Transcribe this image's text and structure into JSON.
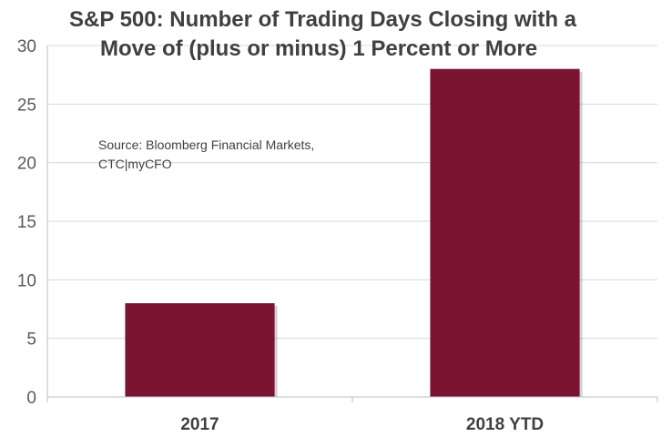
{
  "chart_data": {
    "type": "bar",
    "title_lines": [
      "S&P 500:  Number of Trading Days Closing with a",
      "Move of (plus or minus) 1 Percent or More"
    ],
    "xlabel": "",
    "ylabel": "",
    "categories": [
      "2017",
      "2018 YTD"
    ],
    "values": [
      8,
      28
    ],
    "ylim": [
      0,
      30
    ],
    "yticks": [
      0,
      5,
      10,
      15,
      20,
      25,
      30
    ],
    "grid": true,
    "legend": "none",
    "bar_color": "#7b1430",
    "annotation_lines": [
      "Source: Bloomberg Financial Markets,",
      "CTC|myCFO"
    ]
  }
}
